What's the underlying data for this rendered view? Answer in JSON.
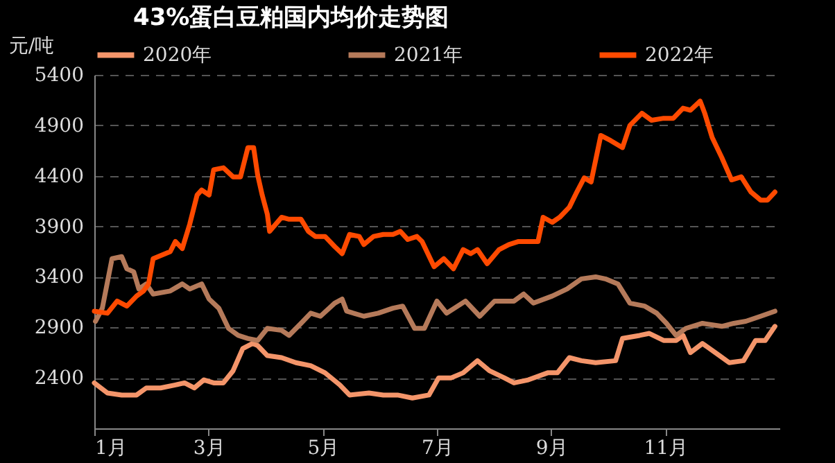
{
  "chart_data": {
    "type": "line",
    "title": "43%蛋白豆粕国内均价走势图",
    "ylabel": "元/吨",
    "legend": "top",
    "grid": "y",
    "xlim": [
      1,
      13
    ],
    "ylim": [
      1900,
      5400
    ],
    "xticks": [
      {
        "value": 1,
        "label": "1月"
      },
      {
        "value": 3,
        "label": "3月"
      },
      {
        "value": 5,
        "label": "5月"
      },
      {
        "value": 7,
        "label": "7月"
      },
      {
        "value": 9,
        "label": "9月"
      },
      {
        "value": 11,
        "label": "11月"
      }
    ],
    "yticks": [
      2400,
      2900,
      3400,
      3900,
      4400,
      4900,
      5400
    ],
    "series": [
      {
        "name": "2020年",
        "color": "#f4956a",
        "x": [
          1,
          1.23,
          1.48,
          1.74,
          1.91,
          2.16,
          2.42,
          2.58,
          2.75,
          2.92,
          3.09,
          3.26,
          3.43,
          3.6,
          3.77,
          3.86,
          4.03,
          4.28,
          4.53,
          4.79,
          5.04,
          5.3,
          5.47,
          5.81,
          6.06,
          6.31,
          6.57,
          6.86,
          7.03,
          7.25,
          7.46,
          7.71,
          7.92,
          8.18,
          8.35,
          8.6,
          8.94,
          9.11,
          9.32,
          9.53,
          9.78,
          10.13,
          10.25,
          10.55,
          10.72,
          10.97,
          11.19,
          11.31,
          11.44,
          11.65,
          11.95,
          12.12,
          12.37,
          12.58,
          12.75,
          12.92
        ],
        "values": [
          2350,
          2250,
          2230,
          2230,
          2300,
          2300,
          2330,
          2350,
          2300,
          2380,
          2350,
          2350,
          2470,
          2690,
          2740,
          2720,
          2620,
          2600,
          2550,
          2520,
          2450,
          2330,
          2230,
          2250,
          2230,
          2230,
          2200,
          2230,
          2400,
          2400,
          2450,
          2570,
          2470,
          2400,
          2350,
          2380,
          2450,
          2450,
          2600,
          2570,
          2550,
          2570,
          2790,
          2820,
          2840,
          2770,
          2770,
          2820,
          2650,
          2740,
          2620,
          2550,
          2570,
          2770,
          2770,
          2910
        ]
      },
      {
        "name": "2021年",
        "color": "#b57a5a",
        "x": [
          1.02,
          1.14,
          1.31,
          1.48,
          1.57,
          1.69,
          1.78,
          1.91,
          2.03,
          2.33,
          2.54,
          2.67,
          2.88,
          3.01,
          3.18,
          3.35,
          3.52,
          3.69,
          3.86,
          4.03,
          4.28,
          4.41,
          4.62,
          4.79,
          4.96,
          5.21,
          5.34,
          5.42,
          5.72,
          5.97,
          6.23,
          6.4,
          6.61,
          6.78,
          7,
          7.17,
          7.5,
          7.75,
          8.01,
          8.35,
          8.52,
          8.69,
          9.02,
          9.28,
          9.53,
          9.78,
          9.95,
          10.17,
          10.38,
          10.64,
          10.85,
          11.02,
          11.19,
          11.36,
          11.65,
          11.99,
          12.2,
          12.41,
          12.67,
          12.92
        ],
        "values": [
          2960,
          3090,
          3580,
          3600,
          3480,
          3450,
          3280,
          3330,
          3230,
          3260,
          3330,
          3280,
          3330,
          3180,
          3090,
          2890,
          2820,
          2790,
          2770,
          2890,
          2870,
          2820,
          2940,
          3040,
          3010,
          3140,
          3180,
          3060,
          3010,
          3040,
          3090,
          3110,
          2890,
          2890,
          3160,
          3040,
          3160,
          3010,
          3160,
          3160,
          3230,
          3140,
          3210,
          3280,
          3380,
          3400,
          3380,
          3330,
          3140,
          3110,
          3040,
          2940,
          2820,
          2890,
          2940,
          2910,
          2940,
          2960,
          3010,
          3060
        ]
      },
      {
        "name": "2022年",
        "color": "#ff4a00",
        "x": [
          1,
          1.23,
          1.4,
          1.57,
          1.74,
          1.86,
          1.95,
          2.03,
          2.33,
          2.42,
          2.54,
          2.67,
          2.8,
          2.88,
          3.01,
          3.09,
          3.26,
          3.43,
          3.56,
          3.69,
          3.79,
          3.86,
          3.94,
          4.03,
          4.07,
          4.28,
          4.41,
          4.62,
          4.75,
          4.87,
          5.04,
          5.21,
          5.34,
          5.47,
          5.64,
          5.72,
          5.89,
          6.06,
          6.23,
          6.36,
          6.49,
          6.65,
          6.74,
          6.95,
          7.12,
          7.29,
          7.46,
          7.59,
          7.71,
          7.88,
          8.09,
          8.26,
          8.43,
          8.77,
          8.86,
          9.02,
          9.15,
          9.32,
          9.45,
          9.58,
          9.7,
          9.87,
          10.04,
          10.25,
          10.38,
          10.59,
          10.76,
          10.97,
          11.14,
          11.31,
          11.44,
          11.61,
          11.69,
          11.82,
          11.99,
          12.16,
          12.33,
          12.5,
          12.67,
          12.79,
          12.92
        ],
        "values": [
          3060,
          3040,
          3160,
          3110,
          3210,
          3260,
          3330,
          3580,
          3650,
          3750,
          3680,
          3920,
          4210,
          4260,
          4210,
          4460,
          4480,
          4390,
          4390,
          4680,
          4680,
          4410,
          4210,
          4020,
          3850,
          3990,
          3970,
          3970,
          3850,
          3800,
          3800,
          3700,
          3630,
          3820,
          3800,
          3720,
          3800,
          3820,
          3820,
          3850,
          3770,
          3800,
          3750,
          3500,
          3580,
          3480,
          3670,
          3630,
          3670,
          3530,
          3670,
          3720,
          3750,
          3750,
          3990,
          3940,
          3990,
          4090,
          4240,
          4380,
          4340,
          4800,
          4750,
          4680,
          4900,
          5020,
          4950,
          4970,
          4970,
          5070,
          5050,
          5140,
          5020,
          4780,
          4580,
          4360,
          4390,
          4240,
          4160,
          4160,
          4240
        ]
      }
    ]
  }
}
